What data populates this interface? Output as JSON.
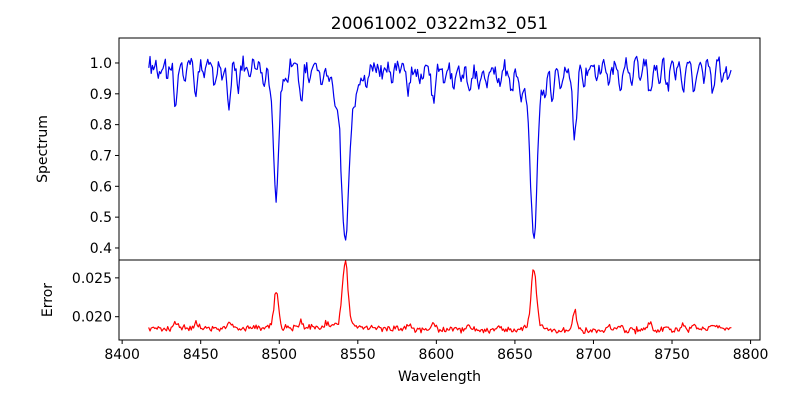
{
  "figure": {
    "title": "20061002_0322m32_051",
    "xlabel": "Wavelength",
    "ylabel_top": "Spectrum",
    "ylabel_bottom": "Error"
  },
  "chart_data": {
    "type": "line",
    "title": "20061002_0322m32_051",
    "xlabel": "Wavelength",
    "grid": false,
    "legend": "none",
    "xlim": [
      8398,
      8806
    ],
    "xticks": [
      8400,
      8450,
      8500,
      8550,
      8600,
      8650,
      8700,
      8750,
      8800
    ],
    "xtick_labels": [
      "8400",
      "8450",
      "8500",
      "8550",
      "8600",
      "8650",
      "8700",
      "8750",
      "8800"
    ],
    "x_data_range": [
      8417,
      8788
    ],
    "x_step": 0.75,
    "panels": [
      {
        "name": "spectrum",
        "ylabel": "Spectrum",
        "color": "#0000ee",
        "ylim": [
          0.361,
          1.081
        ],
        "yticks": [
          1.0,
          0.9,
          0.8,
          0.7,
          0.6,
          0.5,
          0.4
        ],
        "ytick_labels": [
          "1.0",
          "0.9",
          "0.8",
          "0.7",
          "0.6",
          "0.5",
          "0.4"
        ],
        "continuum": 0.99,
        "noise_amp": 0.032,
        "main_absorption_lines": [
          {
            "center": 8498,
            "min_flux": 0.57
          },
          {
            "center": 8542,
            "min_flux": 0.41
          },
          {
            "center": 8662,
            "min_flux": 0.45
          },
          {
            "center": 8688,
            "min_flux": 0.76
          }
        ],
        "features": [
          [
            8424,
            0.05,
            1.0
          ],
          [
            8429,
            0.04,
            0.9
          ],
          [
            8434,
            0.13,
            1.1
          ],
          [
            8440,
            0.06,
            0.9
          ],
          [
            8447,
            0.1,
            1.0
          ],
          [
            8452,
            0.05,
            0.9
          ],
          [
            8459,
            0.07,
            0.9
          ],
          [
            8464,
            0.05,
            0.9
          ],
          [
            8468,
            0.14,
            1.1
          ],
          [
            8474,
            0.08,
            0.9
          ],
          [
            8481,
            0.05,
            0.9
          ],
          [
            8490,
            0.06,
            0.9
          ],
          [
            8498,
            0.36,
            1.6
          ],
          [
            8498,
            0.07,
            4.5
          ],
          [
            8505,
            0.05,
            0.9
          ],
          [
            8514,
            0.12,
            1.1
          ],
          [
            8519,
            0.06,
            0.9
          ],
          [
            8527,
            0.06,
            0.9
          ],
          [
            8536,
            0.05,
            0.9
          ],
          [
            8542,
            0.47,
            2.2
          ],
          [
            8542,
            0.11,
            7.0
          ],
          [
            8549,
            0.04,
            0.9
          ],
          [
            8556,
            0.05,
            0.9
          ],
          [
            8566,
            0.04,
            0.9
          ],
          [
            8572,
            0.05,
            0.9
          ],
          [
            8582,
            0.08,
            1.0
          ],
          [
            8590,
            0.05,
            0.9
          ],
          [
            8598,
            0.11,
            1.1
          ],
          [
            8605,
            0.04,
            0.9
          ],
          [
            8611,
            0.07,
            1.0
          ],
          [
            8616,
            0.05,
            0.9
          ],
          [
            8621,
            0.08,
            1.0
          ],
          [
            8627,
            0.04,
            0.9
          ],
          [
            8632,
            0.05,
            0.9
          ],
          [
            8640,
            0.06,
            0.9
          ],
          [
            8648,
            0.07,
            1.0
          ],
          [
            8654,
            0.05,
            0.9
          ],
          [
            8662,
            0.46,
            2.0
          ],
          [
            8662,
            0.09,
            6.0
          ],
          [
            8669,
            0.05,
            0.9
          ],
          [
            8674,
            0.09,
            1.0
          ],
          [
            8679,
            0.06,
            0.9
          ],
          [
            8688,
            0.22,
            1.4
          ],
          [
            8694,
            0.06,
            0.9
          ],
          [
            8702,
            0.05,
            0.9
          ],
          [
            8710,
            0.06,
            0.9
          ],
          [
            8717,
            0.1,
            1.0
          ],
          [
            8724,
            0.06,
            0.9
          ],
          [
            8730,
            0.06,
            0.9
          ],
          [
            8736,
            0.11,
            1.1
          ],
          [
            8742,
            0.06,
            0.9
          ],
          [
            8747,
            0.08,
            1.0
          ],
          [
            8752,
            0.06,
            0.9
          ],
          [
            8757,
            0.09,
            1.0
          ],
          [
            8764,
            0.1,
            1.0
          ],
          [
            8770,
            0.06,
            0.9
          ],
          [
            8776,
            0.08,
            1.0
          ],
          [
            8782,
            0.06,
            0.9
          ],
          [
            8786,
            0.07,
            0.9
          ]
        ]
      },
      {
        "name": "error",
        "ylabel": "Error",
        "color": "#ff0000",
        "ylim": [
          0.017,
          0.0273
        ],
        "yticks": [
          0.025,
          0.02
        ],
        "ytick_labels": [
          "0.025",
          "0.020"
        ],
        "baseline": 0.0184,
        "noise_amp": 0.0005,
        "main_peaks": [
          {
            "center": 8498,
            "peak": 0.0232
          },
          {
            "center": 8542,
            "peak": 0.027
          },
          {
            "center": 8662,
            "peak": 0.0258
          },
          {
            "center": 8688,
            "peak": 0.021
          }
        ],
        "features": [
          [
            8434,
            0.0008,
            1.2
          ],
          [
            8447,
            0.0005,
            1.2
          ],
          [
            8468,
            0.0007,
            1.2
          ],
          [
            8498,
            0.0048,
            1.4
          ],
          [
            8514,
            0.0007,
            1.2
          ],
          [
            8530,
            0.0006,
            1.2
          ],
          [
            8542,
            0.0078,
            1.7
          ],
          [
            8542,
            0.0008,
            5.0
          ],
          [
            8582,
            0.0005,
            1.2
          ],
          [
            8598,
            0.0008,
            1.2
          ],
          [
            8621,
            0.0006,
            1.2
          ],
          [
            8640,
            0.0005,
            1.2
          ],
          [
            8662,
            0.007,
            1.6
          ],
          [
            8662,
            0.0008,
            5.0
          ],
          [
            8688,
            0.0025,
            1.3
          ],
          [
            8710,
            0.0005,
            1.2
          ],
          [
            8717,
            0.0007,
            1.2
          ],
          [
            8736,
            0.0008,
            1.2
          ],
          [
            8747,
            0.0005,
            1.2
          ],
          [
            8757,
            0.0006,
            1.2
          ],
          [
            8764,
            0.0007,
            1.2
          ],
          [
            8776,
            0.0006,
            1.2
          ]
        ]
      }
    ]
  }
}
